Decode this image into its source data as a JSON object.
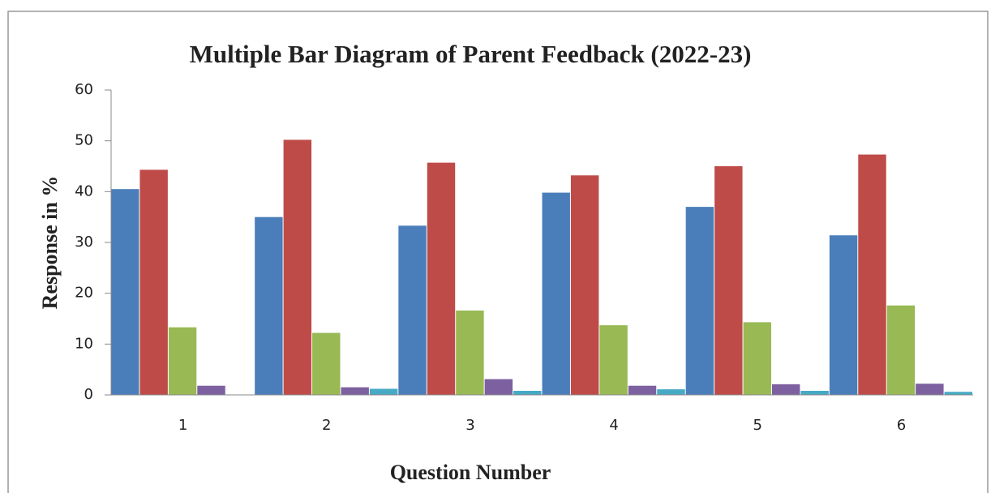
{
  "chart_data": {
    "type": "bar",
    "title": "Multiple Bar Diagram of Parent Feedback  (2022-23)",
    "x_label": "Question Number",
    "y_label": "Response in %",
    "categories": [
      "1",
      "2",
      "3",
      "4",
      "5",
      "6"
    ],
    "series": [
      {
        "color": "#4a7ebb",
        "values": [
          40.5,
          35,
          33.3,
          39.8,
          37,
          31.4
        ]
      },
      {
        "color": "#be4b48",
        "values": [
          44.3,
          50.2,
          45.7,
          43.2,
          45,
          47.3
        ]
      },
      {
        "color": "#98b954",
        "values": [
          13.3,
          12.2,
          16.6,
          13.7,
          14.3,
          17.6
        ]
      },
      {
        "color": "#7d60a0",
        "values": [
          1.8,
          1.5,
          3.1,
          1.8,
          2.1,
          2.2
        ]
      },
      {
        "color": "#46aac5",
        "values": [
          0,
          1.2,
          0.8,
          1.1,
          0.8,
          0.6
        ]
      }
    ],
    "ylim": [
      0,
      60
    ],
    "yticks": [
      0,
      10,
      20,
      30,
      40,
      50,
      60
    ],
    "grid": false
  }
}
